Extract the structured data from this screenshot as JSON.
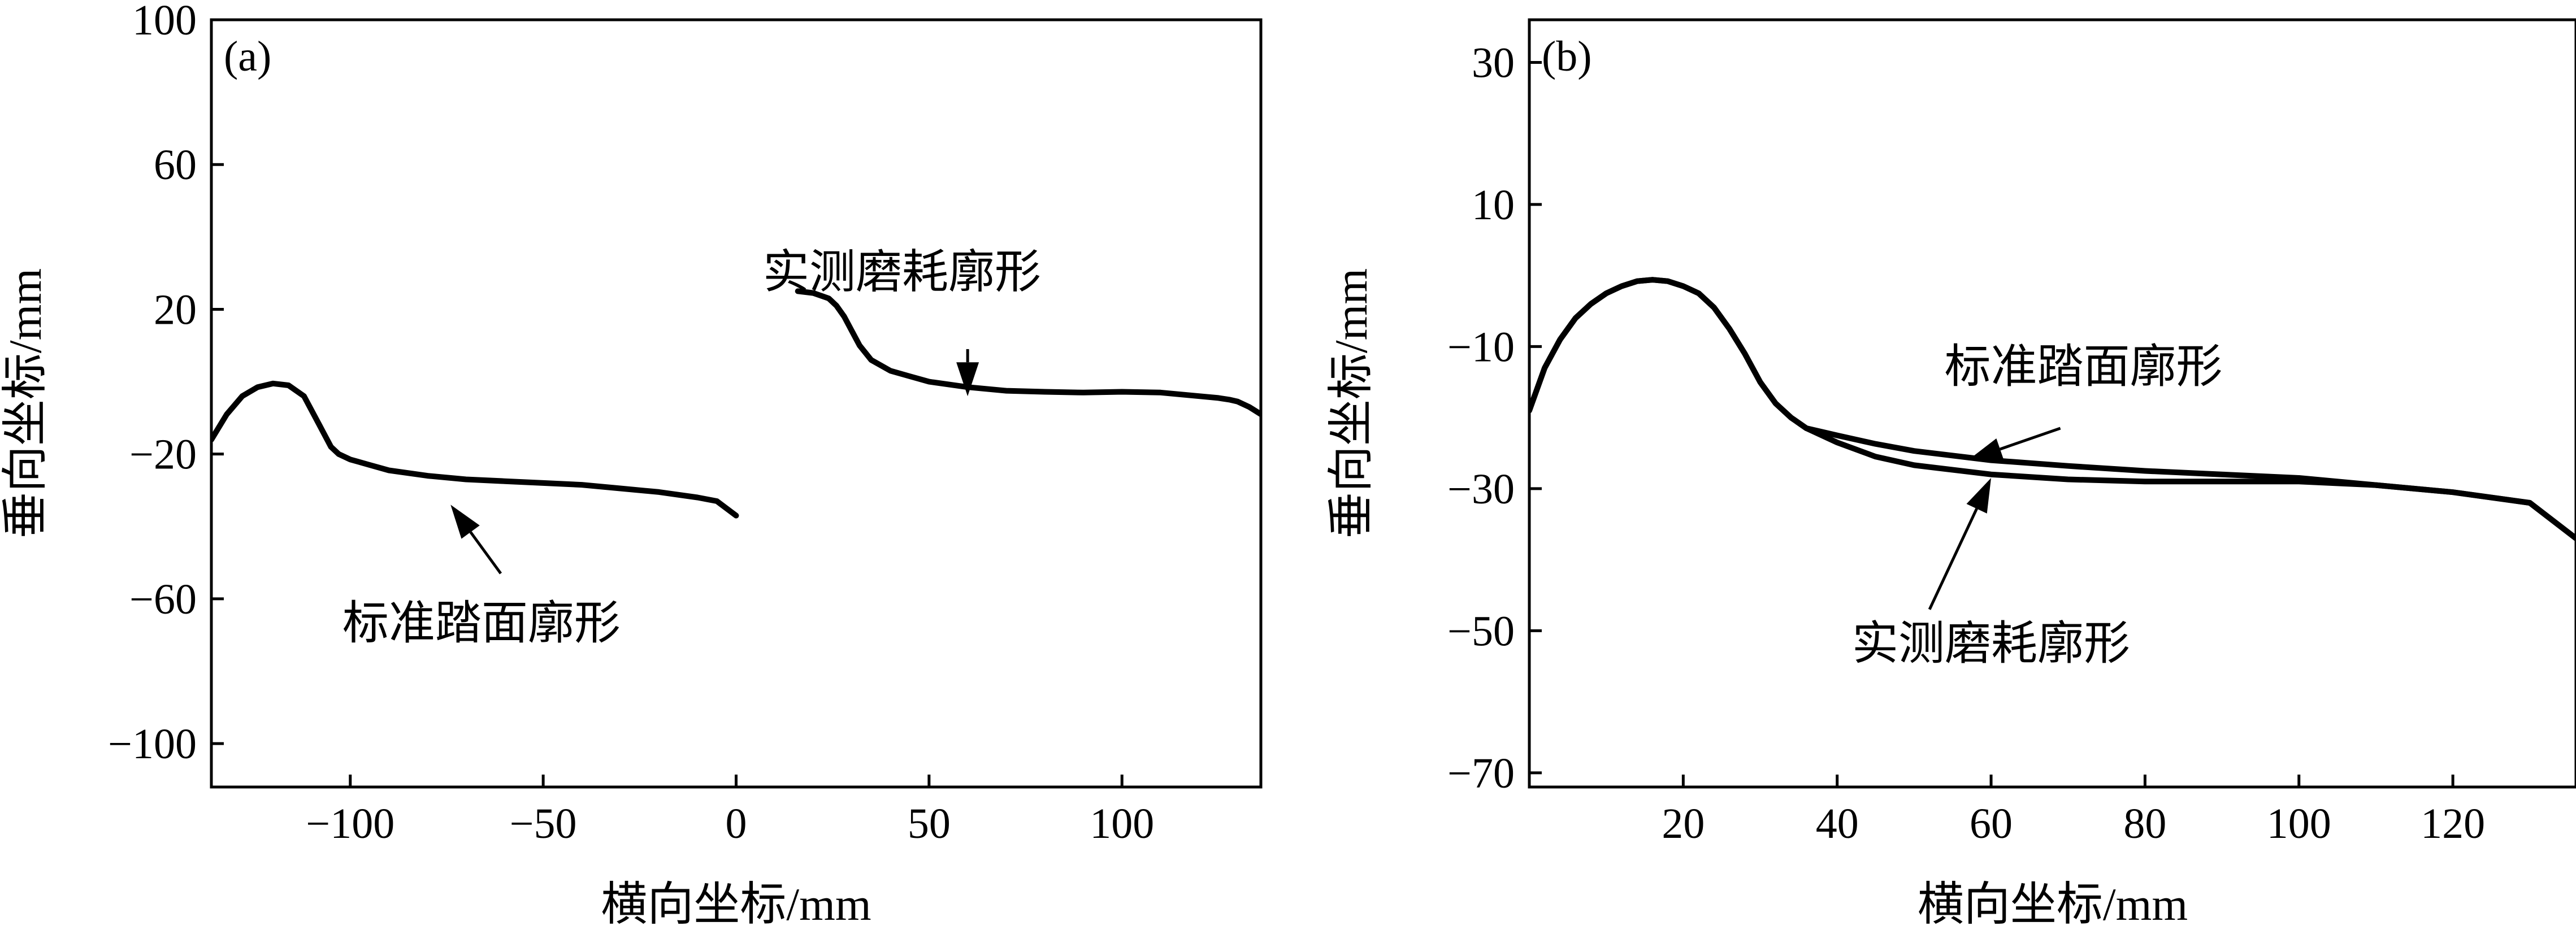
{
  "chart_data": [
    {
      "panel_label": "(a)",
      "type": "line",
      "xlabel": "横向坐标/mm",
      "ylabel": "垂向坐标/mm",
      "xlim": [
        -136,
        136
      ],
      "ylim": [
        -112,
        100
      ],
      "xticks": [
        -100,
        -50,
        0,
        50,
        100
      ],
      "xtick_labels": [
        "−100",
        "−50",
        "0",
        "50",
        "100"
      ],
      "yticks": [
        -100,
        -60,
        -20,
        20,
        60,
        100
      ],
      "ytick_labels": [
        "−100",
        "−60",
        "−20",
        "20",
        "60",
        "100"
      ],
      "series": [
        {
          "name": "标准踏面廓形",
          "x": [
            -136,
            -132,
            -128,
            -124,
            -120,
            -116,
            -112,
            -108,
            -105,
            -103,
            -100,
            -95,
            -90,
            -80,
            -70,
            -60,
            -50,
            -40,
            -30,
            -20,
            -10,
            -5,
            0
          ],
          "y": [
            -16,
            -9,
            -4,
            -1.5,
            -0.5,
            -1,
            -4,
            -12,
            -18,
            -20,
            -21.5,
            -23,
            -24.5,
            -26,
            -27,
            -27.5,
            -28,
            -28.5,
            -29.5,
            -30.5,
            -32,
            -33,
            -37
          ]
        },
        {
          "name": "实测磨耗廓形",
          "x": [
            16,
            20,
            24,
            26,
            28,
            30,
            32,
            35,
            40,
            45,
            50,
            60,
            70,
            80,
            90,
            100,
            110,
            120,
            125,
            128,
            130,
            133,
            136
          ],
          "y": [
            25,
            24.5,
            23,
            21,
            18,
            14,
            10,
            6,
            3,
            1.5,
            0,
            -1.5,
            -2.5,
            -2.8,
            -3,
            -2.8,
            -3,
            -4,
            -4.5,
            -5,
            -5.5,
            -7,
            -9
          ]
        }
      ],
      "annotations": [
        {
          "text": "实测磨耗廓形",
          "arrow_tail": [
            60,
            9
          ],
          "arrow_head": [
            60,
            -4
          ],
          "text_anchor": [
            43,
            26
          ]
        },
        {
          "text": "标准踏面廓形",
          "arrow_tail": [
            -61,
            -53
          ],
          "arrow_head": [
            -74,
            -34
          ],
          "text_anchor": [
            -66,
            -71
          ]
        }
      ]
    },
    {
      "panel_label": "(b)",
      "type": "line",
      "xlabel": "横向坐标/mm",
      "ylabel": "垂向坐标/mm",
      "xlim": [
        0,
        136
      ],
      "ylim": [
        -72,
        36
      ],
      "xticks": [
        20,
        40,
        60,
        80,
        100,
        120
      ],
      "xtick_labels": [
        "20",
        "40",
        "60",
        "80",
        "100",
        "120"
      ],
      "yticks": [
        -70,
        -50,
        -30,
        -10,
        10,
        30
      ],
      "ytick_labels": [
        "−70",
        "−50",
        "−30",
        "−10",
        "10",
        "30"
      ],
      "series": [
        {
          "name": "标准踏面廓形",
          "x": [
            0,
            2,
            4,
            6,
            8,
            10,
            12,
            14,
            16,
            18,
            20,
            22,
            24,
            26,
            28,
            30,
            32,
            34,
            36,
            40,
            45,
            50,
            60,
            70,
            80,
            90,
            100,
            110,
            120,
            130,
            136
          ],
          "y": [
            -19,
            -13,
            -9,
            -6,
            -4,
            -2.5,
            -1.5,
            -0.8,
            -0.6,
            -0.8,
            -1.5,
            -2.5,
            -4.5,
            -7.5,
            -11,
            -15,
            -18,
            -20,
            -21.5,
            -22.5,
            -23.7,
            -24.7,
            -26,
            -26.8,
            -27.5,
            -28,
            -28.5,
            -29.5,
            -30.5,
            -32,
            -37
          ]
        },
        {
          "name": "实测磨耗廓形",
          "x": [
            0,
            2,
            4,
            6,
            8,
            10,
            12,
            14,
            16,
            18,
            20,
            22,
            24,
            26,
            28,
            30,
            32,
            34,
            36,
            40,
            45,
            50,
            60,
            70,
            80,
            90,
            100,
            110,
            120,
            130,
            136
          ],
          "y": [
            -19,
            -13,
            -9,
            -6,
            -4,
            -2.5,
            -1.5,
            -0.8,
            -0.6,
            -0.8,
            -1.5,
            -2.5,
            -4.5,
            -7.5,
            -11,
            -15,
            -18,
            -20,
            -21.5,
            -23.5,
            -25.5,
            -26.7,
            -28,
            -28.7,
            -29,
            -29,
            -29,
            -29.5,
            -30.5,
            -32,
            -37
          ]
        }
      ],
      "annotations": [
        {
          "text": "标准踏面廓形",
          "arrow_tail": [
            69,
            -21.5
          ],
          "arrow_head": [
            57,
            -26
          ],
          "text_anchor": [
            72,
            -15
          ]
        },
        {
          "text": "实测磨耗廓形",
          "arrow_tail": [
            52,
            -47
          ],
          "arrow_head": [
            60,
            -28.5
          ],
          "text_anchor": [
            60,
            -54
          ]
        }
      ]
    }
  ]
}
